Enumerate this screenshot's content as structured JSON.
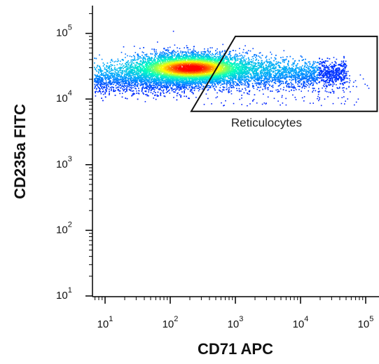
{
  "chart_data": {
    "type": "scatter",
    "subtype": "flow-cytometry-density-plot",
    "title": "",
    "xlabel": "CD71 APC",
    "ylabel": "CD235a FITC",
    "x_scale": "log",
    "y_scale": "log",
    "xlim": [
      5,
      150000
    ],
    "ylim": [
      7,
      250000
    ],
    "x_ticks": [
      {
        "value": 10,
        "base": "10",
        "exp": "1"
      },
      {
        "value": 100,
        "base": "10",
        "exp": "2"
      },
      {
        "value": 1000,
        "base": "10",
        "exp": "3"
      },
      {
        "value": 10000,
        "base": "10",
        "exp": "4"
      },
      {
        "value": 100000,
        "base": "10",
        "exp": "5"
      }
    ],
    "y_ticks": [
      {
        "value": 10,
        "base": "10",
        "exp": "1"
      },
      {
        "value": 100,
        "base": "10",
        "exp": "2"
      },
      {
        "value": 1000,
        "base": "10",
        "exp": "3"
      },
      {
        "value": 10000,
        "base": "10",
        "exp": "4"
      },
      {
        "value": 100000,
        "base": "10",
        "exp": "5"
      }
    ],
    "population": {
      "peak": [
        200,
        30000
      ],
      "x_range": [
        5,
        50000
      ],
      "y_range": [
        9000,
        50000
      ],
      "colormap": [
        "#0000ff",
        "#00a0ff",
        "#00ffc0",
        "#ffff00",
        "#ff0000"
      ]
    },
    "gate": {
      "name": "Reticulocytes",
      "vertices": [
        [
          1000,
          90000
        ],
        [
          150000,
          90000
        ],
        [
          150000,
          6500
        ],
        [
          210,
          6500
        ]
      ],
      "label_anchor": [
        3000,
        3800
      ]
    },
    "grid": false
  }
}
